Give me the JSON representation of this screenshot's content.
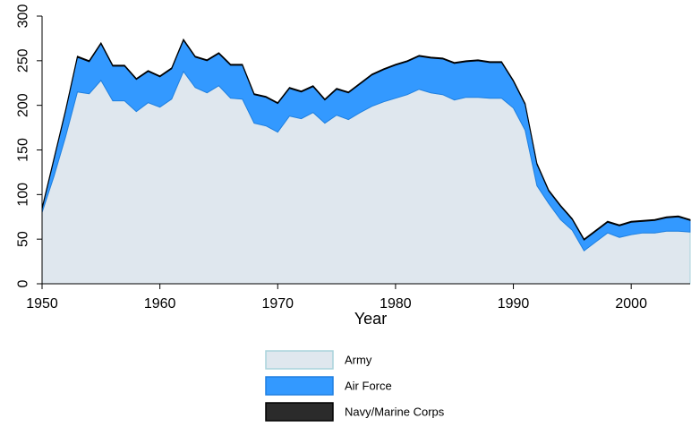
{
  "chart_data": {
    "type": "stacked_area",
    "x_label": "Year",
    "x": [
      1950,
      1951,
      1952,
      1953,
      1954,
      1955,
      1956,
      1957,
      1958,
      1959,
      1960,
      1961,
      1962,
      1963,
      1964,
      1965,
      1966,
      1967,
      1968,
      1969,
      1970,
      1971,
      1972,
      1973,
      1974,
      1975,
      1976,
      1977,
      1978,
      1979,
      1980,
      1981,
      1982,
      1983,
      1984,
      1985,
      1986,
      1987,
      1988,
      1989,
      1990,
      1991,
      1992,
      1993,
      1994,
      1995,
      1996,
      1997,
      1998,
      1999,
      2000,
      2001,
      2002,
      2003,
      2004,
      2005
    ],
    "series": [
      {
        "name": "Army",
        "color": "#dfe7ee",
        "stroke": "#a9d3dc",
        "values": [
          80,
          120,
          165,
          215,
          213,
          228,
          205,
          205,
          193,
          203,
          198,
          207,
          238,
          220,
          214,
          222,
          208,
          207,
          180,
          177,
          170,
          188,
          185,
          192,
          180,
          189,
          184,
          192,
          199,
          204,
          208,
          212,
          218,
          214,
          212,
          206,
          209,
          209,
          208,
          208,
          197,
          172,
          110,
          90,
          72,
          60,
          37,
          47,
          57,
          52,
          55,
          57,
          57,
          59,
          59,
          58
        ]
      },
      {
        "name": "Air Force",
        "color": "#3399ff",
        "stroke": "#1f7fe0",
        "values": [
          4,
          19,
          29,
          39,
          36,
          41,
          39,
          39,
          36,
          35,
          34,
          34,
          35,
          34,
          36,
          36,
          37,
          38,
          32,
          32,
          32,
          31,
          30,
          29,
          26,
          29,
          30,
          32,
          35,
          36,
          37,
          37,
          37,
          39,
          40,
          41,
          40,
          41,
          40,
          40,
          30,
          29,
          24,
          14,
          15,
          12,
          12,
          12,
          12,
          13,
          14,
          13,
          14,
          15,
          16,
          13
        ]
      },
      {
        "name": "Navy/Marine Corps",
        "color": "#2b2b2b",
        "stroke": "#000000",
        "values": [
          1,
          1,
          1,
          1,
          1,
          1,
          1,
          1,
          1,
          1,
          1,
          1,
          1,
          1,
          1,
          1,
          1,
          1,
          1,
          1,
          1,
          1,
          1,
          1,
          1,
          1,
          1,
          1,
          1,
          1,
          1,
          1,
          1,
          1,
          1,
          1,
          1,
          1,
          1,
          1,
          1,
          1,
          1,
          1,
          1,
          1,
          1,
          1,
          1,
          1,
          1,
          1,
          1,
          1,
          1,
          1
        ]
      }
    ],
    "xlim": [
      1950,
      2005
    ],
    "xticks": [
      1950,
      1960,
      1970,
      1980,
      1990,
      2000
    ],
    "ylim": [
      0,
      300
    ],
    "yticks": [
      0,
      50,
      100,
      150,
      200,
      250,
      300
    ],
    "grid": false,
    "legend_position": "bottom"
  }
}
